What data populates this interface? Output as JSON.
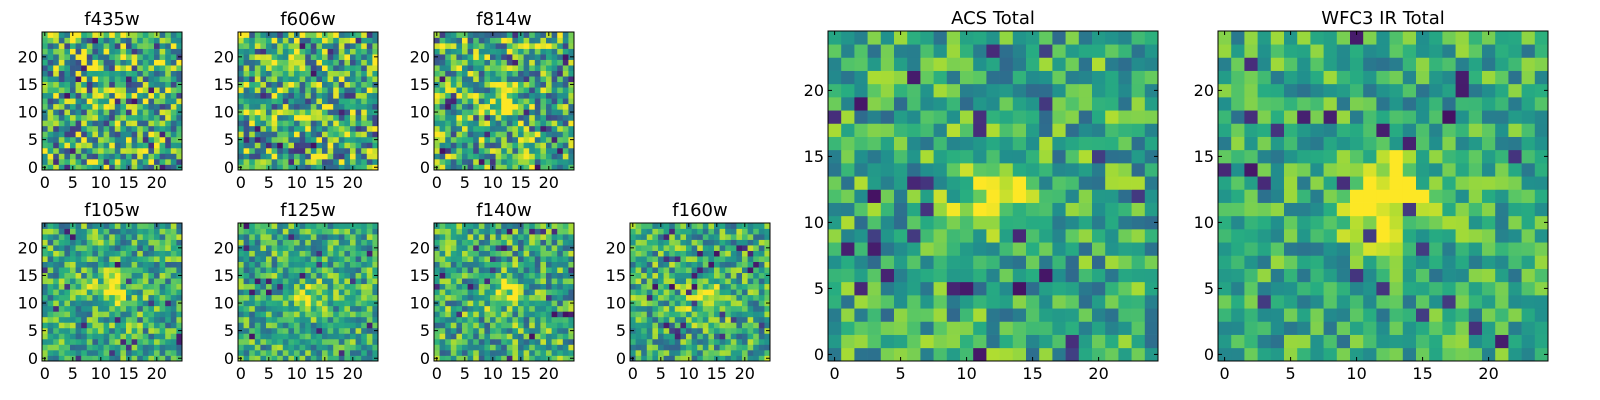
{
  "chart_data": {
    "type": "heatmap",
    "panels": [
      {
        "title": "f435w",
        "pattern": "noise",
        "xlim": [
          0,
          24
        ],
        "ylim": [
          0,
          24
        ],
        "xticks": [
          0,
          5,
          10,
          15,
          20
        ],
        "yticks": [
          0,
          5,
          10,
          15,
          20
        ],
        "xtick_labels": [
          "0",
          "5",
          "10",
          "15",
          "20"
        ],
        "ytick_labels": [
          "0",
          "5",
          "10",
          "15",
          "20"
        ]
      },
      {
        "title": "f606w",
        "pattern": "noise",
        "xlim": [
          0,
          24
        ],
        "ylim": [
          0,
          24
        ],
        "xticks": [
          0,
          5,
          10,
          15,
          20
        ],
        "yticks": [
          0,
          5,
          10,
          15,
          20
        ],
        "xtick_labels": [
          "0",
          "5",
          "10",
          "15",
          "20"
        ],
        "ytick_labels": [
          "0",
          "5",
          "10",
          "15",
          "20"
        ]
      },
      {
        "title": "f814w",
        "pattern": "faint central source",
        "xlim": [
          0,
          24
        ],
        "ylim": [
          0,
          24
        ],
        "xticks": [
          0,
          5,
          10,
          15,
          20
        ],
        "yticks": [
          0,
          5,
          10,
          15,
          20
        ],
        "xtick_labels": [
          "0",
          "5",
          "10",
          "15",
          "20"
        ],
        "ytick_labels": [
          "0",
          "5",
          "10",
          "15",
          "20"
        ]
      },
      {
        "title": "f105w",
        "pattern": "central source",
        "xlim": [
          0,
          24
        ],
        "ylim": [
          0,
          24
        ],
        "xticks": [
          0,
          5,
          10,
          15,
          20
        ],
        "yticks": [
          0,
          5,
          10,
          15,
          20
        ],
        "xtick_labels": [
          "0",
          "5",
          "10",
          "15",
          "20"
        ],
        "ytick_labels": [
          "0",
          "5",
          "10",
          "15",
          "20"
        ]
      },
      {
        "title": "f125w",
        "pattern": "central source",
        "xlim": [
          0,
          24
        ],
        "ylim": [
          0,
          24
        ],
        "xticks": [
          0,
          5,
          10,
          15,
          20
        ],
        "yticks": [
          0,
          5,
          10,
          15,
          20
        ],
        "xtick_labels": [
          "0",
          "5",
          "10",
          "15",
          "20"
        ],
        "ytick_labels": [
          "0",
          "5",
          "10",
          "15",
          "20"
        ]
      },
      {
        "title": "f140w",
        "pattern": "central source",
        "xlim": [
          0,
          24
        ],
        "ylim": [
          0,
          24
        ],
        "xticks": [
          0,
          5,
          10,
          15,
          20
        ],
        "yticks": [
          0,
          5,
          10,
          15,
          20
        ],
        "xtick_labels": [
          "0",
          "5",
          "10",
          "15",
          "20"
        ],
        "ytick_labels": [
          "0",
          "5",
          "10",
          "15",
          "20"
        ]
      },
      {
        "title": "f160w",
        "pattern": "central source",
        "xlim": [
          0,
          24
        ],
        "ylim": [
          0,
          24
        ],
        "xticks": [
          0,
          5,
          10,
          15,
          20
        ],
        "yticks": [
          0,
          5,
          10,
          15,
          20
        ],
        "xtick_labels": [
          "0",
          "5",
          "10",
          "15",
          "20"
        ],
        "ytick_labels": [
          "0",
          "5",
          "10",
          "15",
          "20"
        ]
      },
      {
        "title": "ACS Total",
        "pattern": "central source",
        "xlim": [
          0,
          24
        ],
        "ylim": [
          0,
          24
        ],
        "xticks": [
          0,
          5,
          10,
          15,
          20
        ],
        "yticks": [
          0,
          5,
          10,
          15,
          20
        ],
        "xtick_labels": [
          "0",
          "5",
          "10",
          "15",
          "20"
        ],
        "ytick_labels": [
          "0",
          "5",
          "10",
          "15",
          "20"
        ]
      },
      {
        "title": "WFC3 IR Total",
        "pattern": "bright central source",
        "xlim": [
          0,
          24
        ],
        "ylim": [
          0,
          24
        ],
        "xticks": [
          0,
          5,
          10,
          15,
          20
        ],
        "yticks": [
          0,
          5,
          10,
          15,
          20
        ],
        "xtick_labels": [
          "0",
          "5",
          "10",
          "15",
          "20"
        ],
        "ytick_labels": [
          "0",
          "5",
          "10",
          "15",
          "20"
        ]
      }
    ],
    "grid": false,
    "colormap": "viridis",
    "colors": {
      "low": "#440154",
      "mid": "#21918c",
      "high": "#fde725"
    }
  }
}
